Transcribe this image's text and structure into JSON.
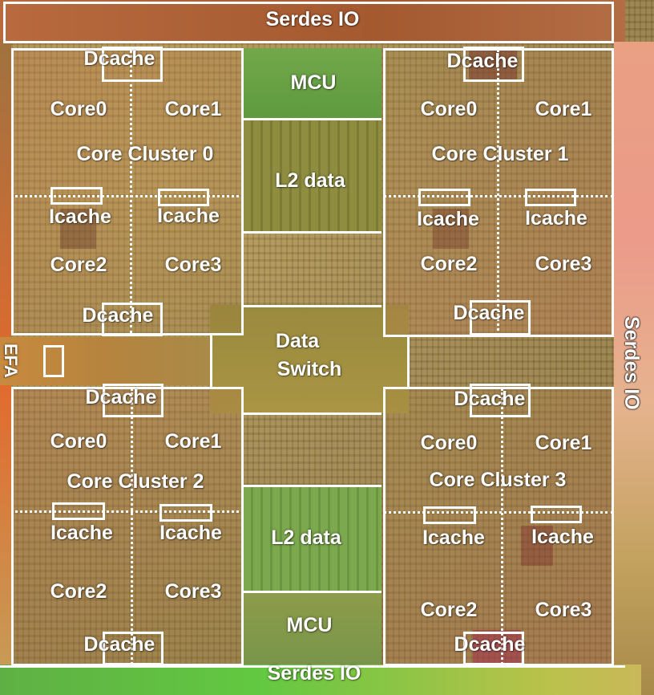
{
  "serdes": {
    "top": "Serdes IO",
    "bottom": "Serdes IO",
    "right": "Serdes IO"
  },
  "center": {
    "mcu_top": "MCU",
    "l2_top": "L2 data",
    "switch_line1": "Data",
    "switch_line2": "Switch",
    "l2_bottom": "L2 data",
    "mcu_bottom": "MCU"
  },
  "side_label": "EFA",
  "clusters": [
    {
      "title": "Core Cluster 0",
      "cores": [
        "Core0",
        "Core1",
        "Core2",
        "Core3"
      ],
      "icache": "Icache",
      "dcache": "Dcache"
    },
    {
      "title": "Core Cluster 1",
      "cores": [
        "Core0",
        "Core1",
        "Core2",
        "Core3"
      ],
      "icache": "Icache",
      "dcache": "Dcache"
    },
    {
      "title": "Core Cluster 2",
      "cores": [
        "Core0",
        "Core1",
        "Core2",
        "Core3"
      ],
      "icache": "Icache",
      "dcache": "Dcache"
    },
    {
      "title": "Core Cluster 3",
      "cores": [
        "Core0",
        "Core1",
        "Core2",
        "Core3"
      ],
      "icache": "Icache",
      "dcache": "Dcache"
    }
  ]
}
